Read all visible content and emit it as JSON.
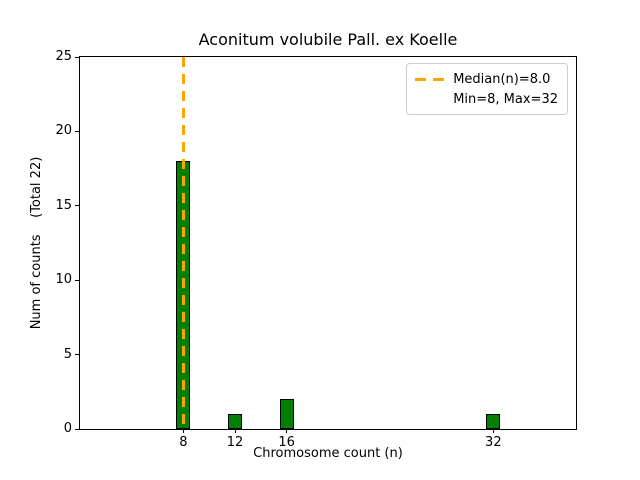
{
  "chart_data": {
    "type": "bar",
    "title": "Aconitum volubile Pall. ex Koelle",
    "xlabel": "Chromosome count (n)",
    "ylabel": "Num of counts    (Total 22)",
    "x": [
      8,
      12,
      16,
      32
    ],
    "values": [
      18,
      1,
      2,
      1
    ],
    "total_counts": 22,
    "xticks": [
      8,
      12,
      16,
      32
    ],
    "yticks": [
      0,
      5,
      10,
      15,
      20,
      25
    ],
    "xlim": [
      0,
      38.4
    ],
    "ylim": [
      0,
      25
    ],
    "grid": false,
    "bar": {
      "color": "#008000",
      "edge_color": "#000000",
      "width_units": 1.1
    },
    "median_line": {
      "x": 8.0,
      "color": "#FFA500",
      "style": "dashed"
    },
    "stats": {
      "median": 8.0,
      "min": 8,
      "max": 32
    },
    "legend": {
      "position": "upper-right",
      "items": [
        {
          "marker": "orange-dashed-line",
          "label": "Median(n)=8.0"
        },
        {
          "marker": "none",
          "label": "Min=8, Max=32"
        }
      ]
    }
  }
}
